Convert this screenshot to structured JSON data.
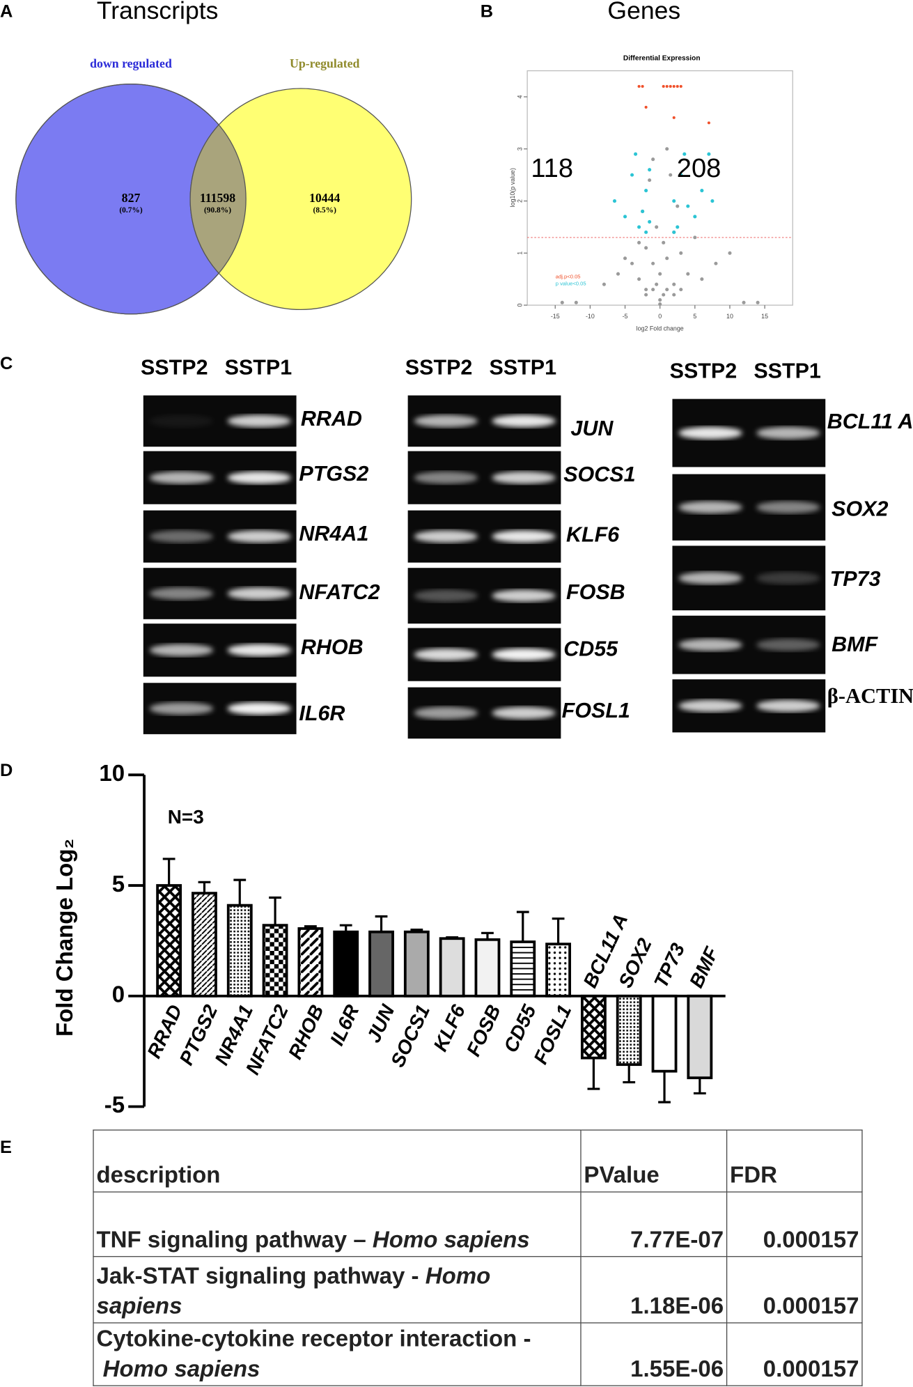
{
  "panel_labels": [
    "A",
    "B",
    "C",
    "D",
    "E"
  ],
  "chart_data": [
    {
      "type": "venn",
      "title": "Transcripts",
      "sets": [
        {
          "name": "down regulated",
          "color": "#7b7bf2",
          "label_color": "#2a2ad8"
        },
        {
          "name": "Up-regulated",
          "color": "#ffff73",
          "label_color": "#8f8a2a"
        }
      ],
      "overlap_color": "#a9a47c",
      "values": [
        827,
        111598,
        10444
      ],
      "percents": [
        0.7,
        90.8,
        8.5
      ],
      "percent_labels": [
        "(0.7%)",
        "(90.8%)",
        "(8.5%)"
      ]
    },
    {
      "type": "scatter",
      "title": "Genes",
      "subtitle": "Differential Expression",
      "x_label": "log2 Fold change",
      "y_label": "log10(p value)",
      "down_count": 118,
      "up_count": 208,
      "hline": 1.3,
      "xlim": [
        -19,
        19
      ],
      "ylim": [
        0,
        4.5
      ],
      "xticks": [
        -15,
        -10,
        -5,
        0,
        5,
        10,
        15
      ],
      "yticks": [
        0,
        1,
        2,
        3,
        4
      ],
      "series": [
        {
          "name": null,
          "color": "#9a9a9a",
          "x": [
            -12,
            -8,
            -6,
            -5,
            -4,
            -3,
            -3,
            -2.5,
            -2,
            -2,
            -1.5,
            -1,
            -1,
            -0.5,
            -0.5,
            0,
            0,
            0.5,
            0.5,
            1,
            1,
            1.5,
            2,
            2,
            2.5,
            3,
            3,
            4,
            5,
            6,
            8,
            10,
            12,
            -14,
            14,
            -1,
            1,
            -2,
            2,
            0
          ],
          "values": [
            0.05,
            0.4,
            0.6,
            0.9,
            0.8,
            1.2,
            0.5,
            1.8,
            1.1,
            0.3,
            2.4,
            0.8,
            2.8,
            0.4,
            1.5,
            0.1,
            0.6,
            1.2,
            0.2,
            0.9,
            3.0,
            2.5,
            1.4,
            0.4,
            1.9,
            1.0,
            0.3,
            0.6,
            1.3,
            0.5,
            0.8,
            1.0,
            0.05,
            0.05,
            0.05,
            0.3,
            0.3,
            0.2,
            0.2,
            0.02
          ]
        },
        {
          "name": "p value<0.05",
          "color": "#2bc4d4",
          "x": [
            -6.5,
            -5,
            -4,
            -3.5,
            -3,
            -2.5,
            -2,
            -2,
            -1.5,
            -1.5,
            2,
            2,
            2.5,
            3,
            3.5,
            4,
            5,
            6,
            7,
            7.5
          ],
          "values": [
            2.0,
            1.7,
            2.5,
            2.9,
            1.5,
            1.8,
            2.2,
            1.4,
            2.6,
            1.6,
            2.0,
            1.4,
            1.5,
            2.5,
            2.9,
            1.9,
            1.7,
            2.2,
            2.9,
            2.0
          ]
        },
        {
          "name": "adj.p<0.05",
          "color": "#f0502a",
          "x": [
            -3,
            -2.5,
            -2,
            0.5,
            1,
            1.5,
            2,
            2.5,
            3,
            2,
            7
          ],
          "values": [
            4.2,
            4.2,
            3.8,
            4.2,
            4.2,
            4.2,
            4.2,
            4.2,
            4.2,
            3.6,
            3.5
          ]
        }
      ]
    },
    {
      "type": "bar",
      "y_label": "Fold Change Log₂",
      "annotation": "N=3",
      "categories": [
        "RRAD",
        "PTGS2",
        "NR4A1",
        "NFATC2",
        "RHOB",
        "IL6R",
        "JUN",
        "SOCS1",
        "KLF6",
        "FOSB",
        "CD55",
        "FOSL1",
        "BCL11 A",
        "SOX2",
        "TP73",
        "BMF"
      ],
      "values": [
        5.0,
        4.65,
        4.1,
        3.2,
        3.05,
        2.9,
        2.9,
        2.9,
        2.6,
        2.55,
        2.45,
        2.35,
        -2.8,
        -3.1,
        -3.4,
        -3.7
      ],
      "errors": [
        1.2,
        0.5,
        1.15,
        1.25,
        0.1,
        0.3,
        0.7,
        0.1,
        0.05,
        0.3,
        1.35,
        1.15,
        1.4,
        0.8,
        1.4,
        0.7
      ],
      "fills": [
        "url(#pat-cross)",
        "url(#pat-diag-thin)",
        "url(#pat-dots)",
        "url(#pat-check)",
        "url(#pat-diag)",
        "#000000",
        "#666666",
        "#aaaaaa",
        "#dddddd",
        "#f2f2f2",
        "url(#pat-hline)",
        "url(#pat-dots2)",
        "url(#pat-cross)",
        "url(#pat-dots)",
        "#ffffff",
        "#d9d9d9"
      ],
      "ylim": [
        -5,
        10
      ],
      "yticks": [
        -5,
        0,
        5,
        10
      ]
    }
  ],
  "gels": [
    {
      "lanes": [
        "SSTP2",
        "SSTP1"
      ],
      "genes": [
        "RRAD",
        "PTGS2",
        "NR4A1",
        "NFATC2",
        "RHOB",
        "IL6R"
      ]
    },
    {
      "lanes": [
        "SSTP2",
        "SSTP1"
      ],
      "genes": [
        "JUN",
        "SOCS1",
        "KLF6",
        "FOSB",
        "CD55",
        "FOSL1"
      ]
    },
    {
      "lanes": [
        "SSTP2",
        "SSTP1"
      ],
      "genes": [
        "BCL11 A",
        "SOX2",
        "TP73",
        "BMF",
        "β-ACTIN"
      ]
    }
  ],
  "table": {
    "header": [
      "description",
      "PValue",
      "FDR"
    ],
    "rows": [
      {
        "description": "TNF signaling pathway –",
        "species": "Homo sapiens",
        "pvalue": "7.77E-07",
        "fdr": "0.000157"
      },
      {
        "description": "Jak-STAT signaling pathway -",
        "species": "Homo sapiens",
        "pvalue": "1.18E-06",
        "fdr": "0.000157"
      },
      {
        "description": "Cytokine-cytokine receptor interaction -",
        "species": "Homo sapiens",
        "pvalue": "1.55E-06",
        "fdr": "0.000157"
      }
    ]
  }
}
